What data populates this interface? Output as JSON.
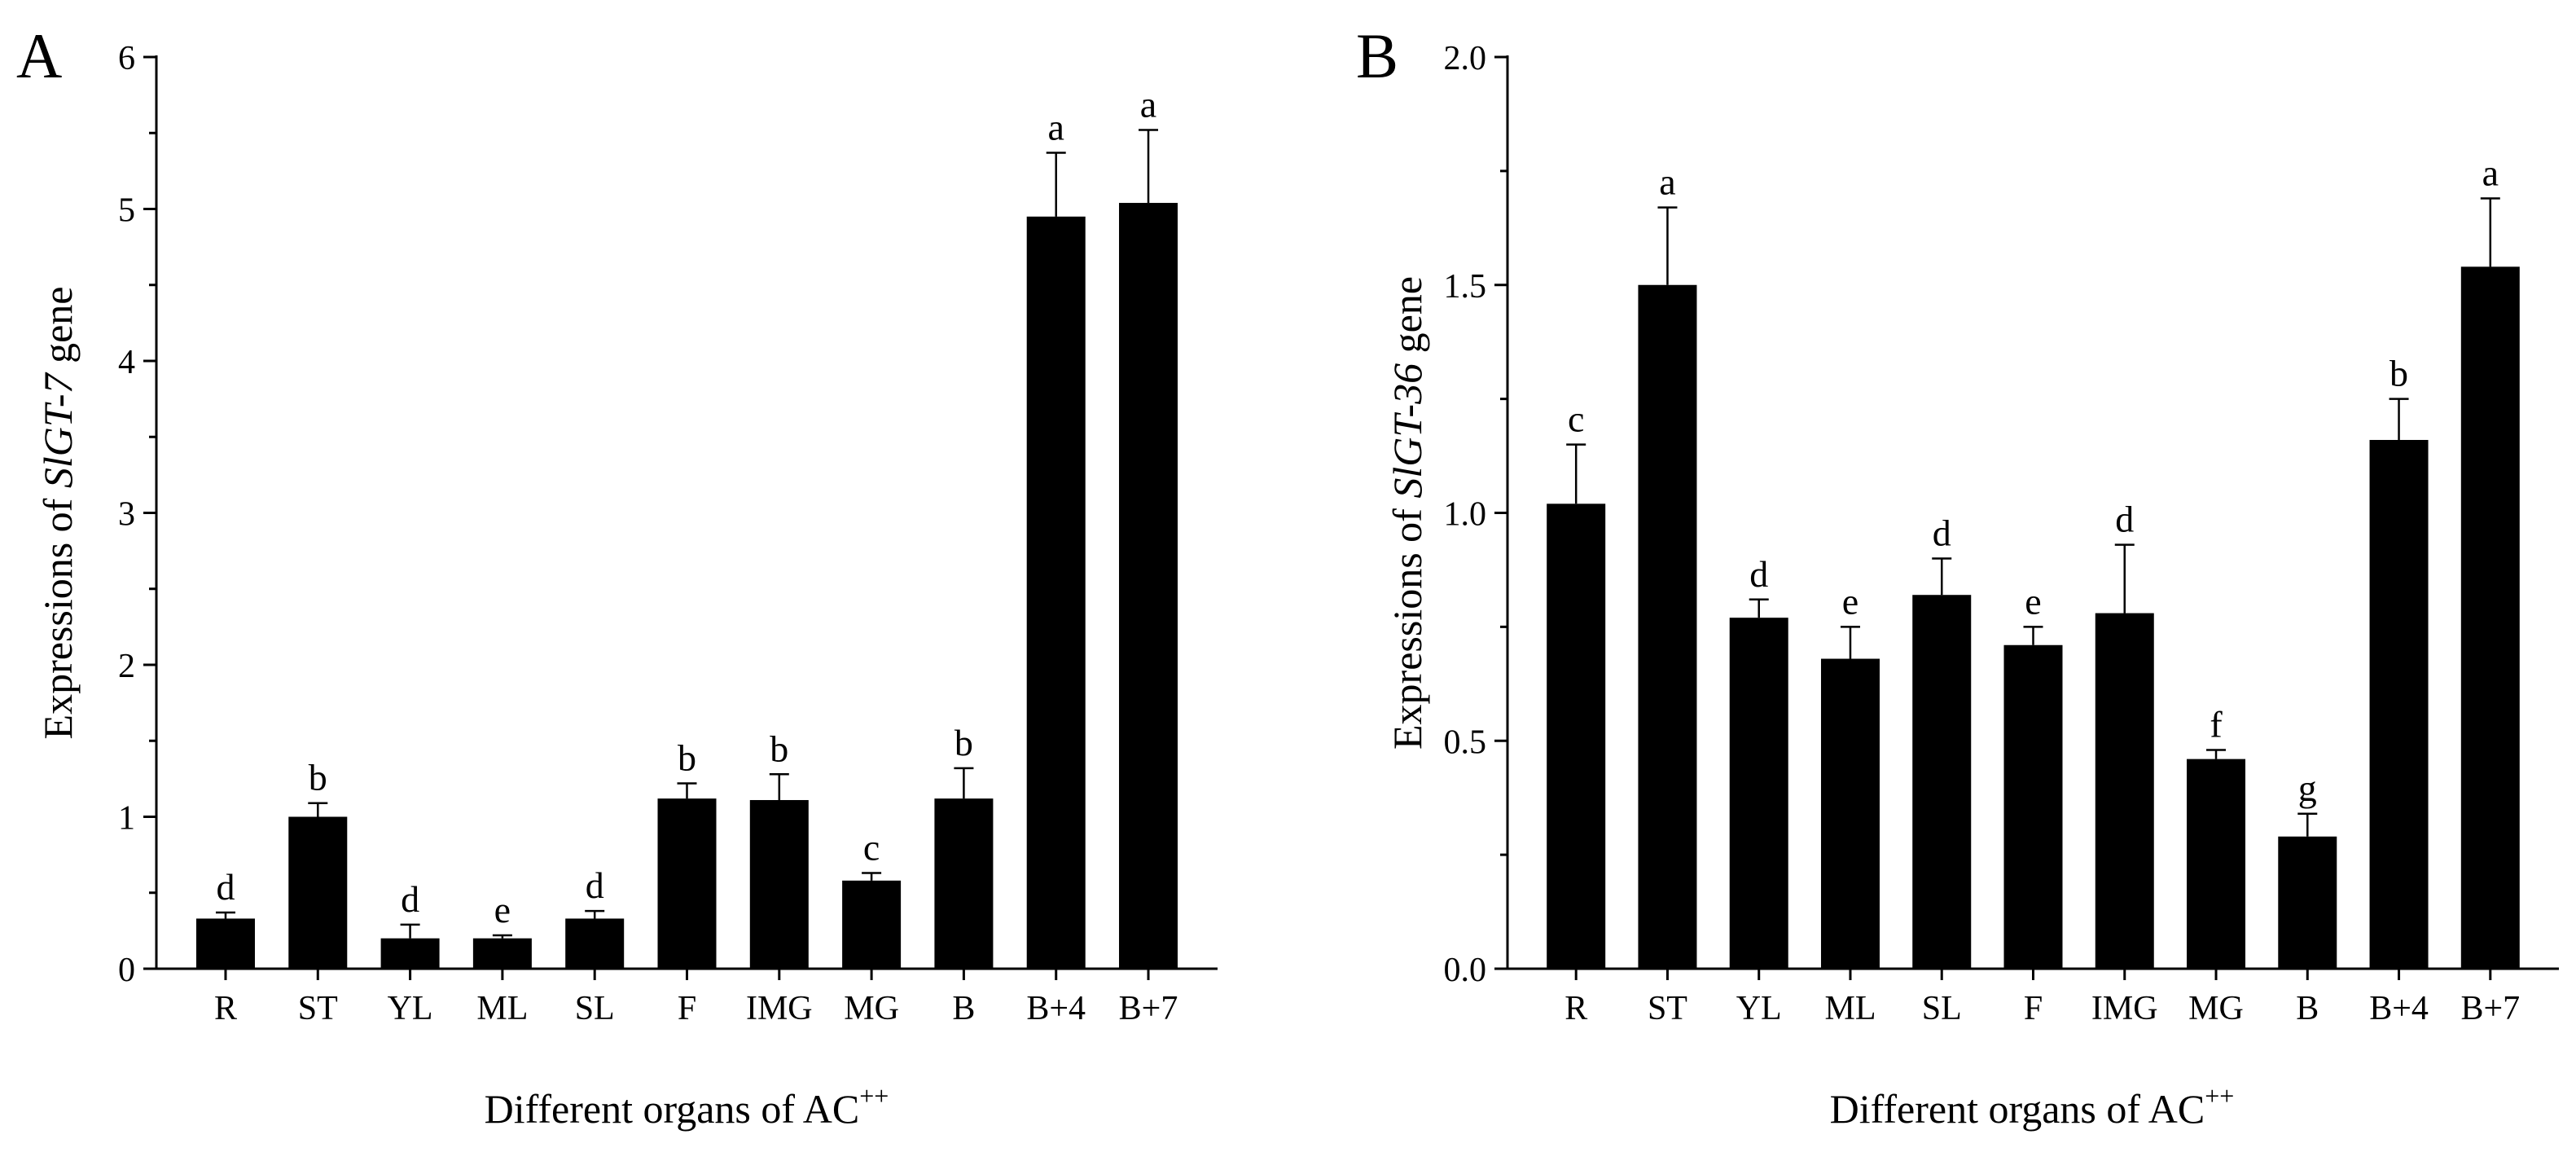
{
  "chart_data": [
    {
      "type": "bar",
      "panel_label": "A",
      "xlabel": "Different organs of AC",
      "xlabel_sup": "++",
      "ylabel_prefix": "Expressions of ",
      "ylabel_gene": "SlGT-7",
      "ylabel_suffix": " gene",
      "ylim": [
        0,
        6
      ],
      "yticks": [
        "0",
        "1",
        "2",
        "3",
        "4",
        "5",
        "6"
      ],
      "categories": [
        "R",
        "ST",
        "YL",
        "ML",
        "SL",
        "F",
        "IMG",
        "MG",
        "B",
        "B+4",
        "B+7"
      ],
      "values": [
        0.33,
        1.0,
        0.2,
        0.2,
        0.33,
        1.12,
        1.11,
        0.58,
        1.12,
        4.95,
        5.04
      ],
      "errors": [
        0.04,
        0.09,
        0.09,
        0.02,
        0.05,
        0.1,
        0.17,
        0.05,
        0.2,
        0.42,
        0.48
      ],
      "letters": [
        "d",
        "b",
        "d",
        "e",
        "d",
        "b",
        "b",
        "c",
        "b",
        "a",
        "a"
      ],
      "color": "#000000"
    },
    {
      "type": "bar",
      "panel_label": "B",
      "xlabel": "Different organs of AC",
      "xlabel_sup": "++",
      "ylabel_prefix": "Expressions of ",
      "ylabel_gene": "SlGT-36",
      "ylabel_suffix": " gene",
      "ylim": [
        0,
        2.0
      ],
      "yticks": [
        "0.0",
        "0.5",
        "1.0",
        "1.5",
        "2.0"
      ],
      "categories": [
        "R",
        "ST",
        "YL",
        "ML",
        "SL",
        "F",
        "IMG",
        "MG",
        "B",
        "B+4",
        "B+7"
      ],
      "values": [
        1.02,
        1.5,
        0.77,
        0.68,
        0.82,
        0.71,
        0.78,
        0.46,
        0.29,
        1.16,
        1.54
      ],
      "errors": [
        0.13,
        0.17,
        0.04,
        0.07,
        0.08,
        0.04,
        0.15,
        0.02,
        0.05,
        0.09,
        0.15
      ],
      "letters": [
        "c",
        "a",
        "d",
        "e",
        "d",
        "e",
        "d",
        "f",
        "g",
        "b",
        "a"
      ],
      "color": "#000000"
    }
  ]
}
